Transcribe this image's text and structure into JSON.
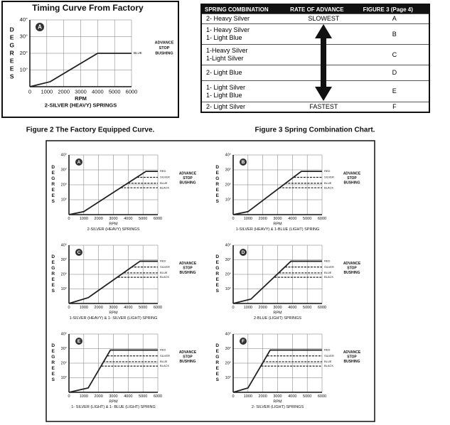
{
  "chart_data": [
    {
      "type": "line",
      "title": "Timing Curve From Factory",
      "panel": "A",
      "y_label": "DEGREES",
      "x_label": "RPM",
      "subtitle": "2-SILVER (HEAVY) SPRINGS",
      "annotation": [
        "ADVANCE",
        "STOP",
        "BUSHING"
      ],
      "xlim": [
        0,
        6000
      ],
      "xticks": [
        0,
        1000,
        2000,
        3000,
        4000,
        5000,
        6000
      ],
      "ylim": [
        0,
        40
      ],
      "yticks": [
        {
          "value": 10,
          "label": "10°"
        },
        {
          "value": 20,
          "label": "20°"
        },
        {
          "value": 30,
          "label": "30°"
        },
        {
          "value": 40,
          "label": "40°"
        }
      ],
      "grid": true,
      "series": [
        {
          "name": "BLUE",
          "color": "#222222",
          "dash": false,
          "x": [
            0,
            1200,
            4000,
            6000
          ],
          "values": [
            0,
            3,
            20,
            20
          ]
        }
      ]
    },
    {
      "type": "line",
      "panel": "A",
      "y_label": "DEGREES",
      "x_label": "RPM",
      "subtitle": "2-SILVER (HEAVY) SPRINGS",
      "annotation": [
        "ADVANCE",
        "STOP",
        "BUSHING"
      ],
      "xlim": [
        0,
        6000
      ],
      "xticks": [
        0,
        1000,
        2000,
        3000,
        4000,
        5000,
        6000
      ],
      "ylim": [
        0,
        40
      ],
      "yticks": [
        {
          "value": 10,
          "label": "10°"
        },
        {
          "value": 20,
          "label": "20°"
        },
        {
          "value": 30,
          "label": "30°"
        },
        {
          "value": 40,
          "label": "40°"
        }
      ],
      "grid": true,
      "series": [
        {
          "name": "RED",
          "color": "#222222",
          "dash": false,
          "x": [
            0,
            1000,
            5200,
            6000
          ],
          "values": [
            0,
            2,
            29,
            29
          ]
        },
        {
          "name": "SILVER",
          "color": "#222222",
          "dash": true,
          "x": [
            4600,
            6000
          ],
          "values": [
            25,
            25
          ]
        },
        {
          "name": "BLUE",
          "color": "#222222",
          "dash": true,
          "x": [
            4000,
            6000
          ],
          "values": [
            21,
            21
          ]
        },
        {
          "name": "BLACK",
          "color": "#222222",
          "dash": true,
          "x": [
            3500,
            6000
          ],
          "values": [
            18,
            18
          ]
        }
      ]
    },
    {
      "type": "line",
      "panel": "B",
      "y_label": "DEGREES",
      "x_label": "RPM",
      "subtitle": "1-SILVER (HEAVY) & 1-BLUE (LIGHT) SPRING",
      "annotation": [
        "ADVANCE",
        "STOP",
        "BUSHING"
      ],
      "xlim": [
        0,
        6000
      ],
      "xticks": [
        0,
        1000,
        2000,
        3000,
        4000,
        5000,
        6000
      ],
      "ylim": [
        0,
        40
      ],
      "yticks": [
        {
          "value": 10,
          "label": "10°"
        },
        {
          "value": 20,
          "label": "20°"
        },
        {
          "value": 30,
          "label": "30°"
        },
        {
          "value": 40,
          "label": "40°"
        }
      ],
      "grid": true,
      "series": [
        {
          "name": "RED",
          "color": "#222222",
          "dash": false,
          "x": [
            0,
            1000,
            4600,
            6000
          ],
          "values": [
            0,
            2,
            29,
            29
          ]
        },
        {
          "name": "SILVER",
          "color": "#222222",
          "dash": true,
          "x": [
            4100,
            6000
          ],
          "values": [
            25,
            25
          ]
        },
        {
          "name": "BLUE",
          "color": "#222222",
          "dash": true,
          "x": [
            3500,
            6000
          ],
          "values": [
            21,
            21
          ]
        },
        {
          "name": "BLACK",
          "color": "#222222",
          "dash": true,
          "x": [
            3100,
            6000
          ],
          "values": [
            18,
            18
          ]
        }
      ]
    },
    {
      "type": "line",
      "panel": "C",
      "y_label": "DEGREES",
      "x_label": "RPM",
      "subtitle": "1-SILVER (HEAVY) & 1- SILVER (LIGHT) SPRING",
      "annotation": [
        "ADVANCE",
        "STOP",
        "BUSHING"
      ],
      "xlim": [
        0,
        6000
      ],
      "xticks": [
        0,
        1000,
        2000,
        3000,
        4000,
        5000,
        6000
      ],
      "ylim": [
        0,
        40
      ],
      "yticks": [
        {
          "value": 10,
          "label": "10°"
        },
        {
          "value": 20,
          "label": "20°"
        },
        {
          "value": 30,
          "label": "30°"
        },
        {
          "value": 40,
          "label": "40°"
        }
      ],
      "grid": true,
      "series": [
        {
          "name": "RED",
          "color": "#222222",
          "dash": false,
          "x": [
            0,
            1300,
            4800,
            6000
          ],
          "values": [
            0,
            4,
            29,
            29
          ]
        },
        {
          "name": "SILVER",
          "color": "#222222",
          "dash": true,
          "x": [
            4200,
            6000
          ],
          "values": [
            25,
            25
          ]
        },
        {
          "name": "BLUE",
          "color": "#222222",
          "dash": true,
          "x": [
            3700,
            6000
          ],
          "values": [
            21,
            21
          ]
        },
        {
          "name": "BLACK",
          "color": "#222222",
          "dash": true,
          "x": [
            3300,
            6000
          ],
          "values": [
            18,
            18
          ]
        }
      ]
    },
    {
      "type": "line",
      "panel": "D",
      "y_label": "DEGREES",
      "x_label": "RPM",
      "subtitle": "2-BLUE (LIGHT) SPRINGS",
      "annotation": [
        "ADVANCE",
        "STOP",
        "BUSHING"
      ],
      "xlim": [
        0,
        6000
      ],
      "xticks": [
        0,
        1000,
        2000,
        3000,
        4000,
        5000,
        6000
      ],
      "ylim": [
        0,
        40
      ],
      "yticks": [
        {
          "value": 10,
          "label": "10°"
        },
        {
          "value": 20,
          "label": "20°"
        },
        {
          "value": 30,
          "label": "30°"
        },
        {
          "value": 40,
          "label": "40°"
        }
      ],
      "grid": true,
      "series": [
        {
          "name": "RED",
          "color": "#222222",
          "dash": false,
          "x": [
            0,
            1200,
            3900,
            6000
          ],
          "values": [
            0,
            3,
            29,
            29
          ]
        },
        {
          "name": "SILVER",
          "color": "#222222",
          "dash": true,
          "x": [
            3500,
            6000
          ],
          "values": [
            25,
            25
          ]
        },
        {
          "name": "BLUE",
          "color": "#222222",
          "dash": true,
          "x": [
            3100,
            6000
          ],
          "values": [
            21,
            21
          ]
        },
        {
          "name": "BLACK",
          "color": "#222222",
          "dash": true,
          "x": [
            2800,
            6000
          ],
          "values": [
            18,
            18
          ]
        }
      ]
    },
    {
      "type": "line",
      "panel": "E",
      "y_label": "DEGREES",
      "x_label": "RPM",
      "subtitle": "1- SILVER (LIGHT) & 1- BLUE (LIGHT) SPRING",
      "annotation": [
        "ADVANCE",
        "STOP",
        "BUSHING"
      ],
      "xlim": [
        0,
        6000
      ],
      "xticks": [
        0,
        1000,
        2000,
        3000,
        4000,
        5000,
        6000
      ],
      "ylim": [
        0,
        40
      ],
      "yticks": [
        {
          "value": 10,
          "label": "10°"
        },
        {
          "value": 20,
          "label": "20°"
        },
        {
          "value": 30,
          "label": "30°"
        },
        {
          "value": 40,
          "label": "40°"
        }
      ],
      "grid": true,
      "series": [
        {
          "name": "RED",
          "color": "#222222",
          "dash": false,
          "x": [
            0,
            1300,
            2800,
            6000
          ],
          "values": [
            0,
            3,
            29,
            29
          ]
        },
        {
          "name": "SILVER",
          "color": "#222222",
          "dash": true,
          "x": [
            2600,
            6000
          ],
          "values": [
            25,
            25
          ]
        },
        {
          "name": "BLUE",
          "color": "#222222",
          "dash": true,
          "x": [
            2300,
            6000
          ],
          "values": [
            21,
            21
          ]
        },
        {
          "name": "BLACK",
          "color": "#222222",
          "dash": true,
          "x": [
            2200,
            6000
          ],
          "values": [
            18,
            18
          ]
        }
      ]
    },
    {
      "type": "line",
      "panel": "F",
      "y_label": "DEGREES",
      "x_label": "RPM",
      "subtitle": "2- SILVER (LIGHT) SPRINGS",
      "annotation": [
        "ADVANCE",
        "STOP",
        "BUSHING"
      ],
      "xlim": [
        0,
        6000
      ],
      "xticks": [
        0,
        1000,
        2000,
        3000,
        4000,
        5000,
        6000
      ],
      "ylim": [
        0,
        40
      ],
      "yticks": [
        {
          "value": 10,
          "label": "10°"
        },
        {
          "value": 20,
          "label": "20°"
        },
        {
          "value": 30,
          "label": "30°"
        },
        {
          "value": 40,
          "label": "40°"
        }
      ],
      "grid": true,
      "series": [
        {
          "name": "RED",
          "color": "#222222",
          "dash": false,
          "x": [
            0,
            1000,
            2500,
            6000
          ],
          "values": [
            0,
            3,
            29,
            29
          ]
        },
        {
          "name": "SILVER",
          "color": "#222222",
          "dash": true,
          "x": [
            2300,
            6000
          ],
          "values": [
            25,
            25
          ]
        },
        {
          "name": "BLUE",
          "color": "#222222",
          "dash": true,
          "x": [
            2000,
            6000
          ],
          "values": [
            21,
            21
          ]
        },
        {
          "name": "BLACK",
          "color": "#222222",
          "dash": true,
          "x": [
            1900,
            6000
          ],
          "values": [
            18,
            18
          ]
        }
      ]
    }
  ],
  "table": {
    "headers": [
      "SPRING COMBINATION",
      "RATE OF ADVANCE",
      "FIGURE 3 (Page 4)"
    ],
    "slowest": "SLOWEST",
    "fastest": "FASTEST",
    "rows": [
      {
        "spring": [
          "2- Heavy Silver"
        ],
        "figure": "A"
      },
      {
        "spring": [
          "1- Heavy Silver",
          "1- Light Blue"
        ],
        "figure": "B"
      },
      {
        "spring": [
          "1-Heavy Silver",
          "1-Light Silver"
        ],
        "figure": "C"
      },
      {
        "spring": [
          "2- Light Blue"
        ],
        "figure": "D"
      },
      {
        "spring": [
          "1- Light Silver",
          "1- Light Blue"
        ],
        "figure": "E"
      },
      {
        "spring": [
          "2- Light Silver"
        ],
        "figure": "F"
      }
    ]
  },
  "captions": [
    "Figure 2  The Factory Equipped Curve.",
    "Figure 3  Spring Combination Chart."
  ]
}
